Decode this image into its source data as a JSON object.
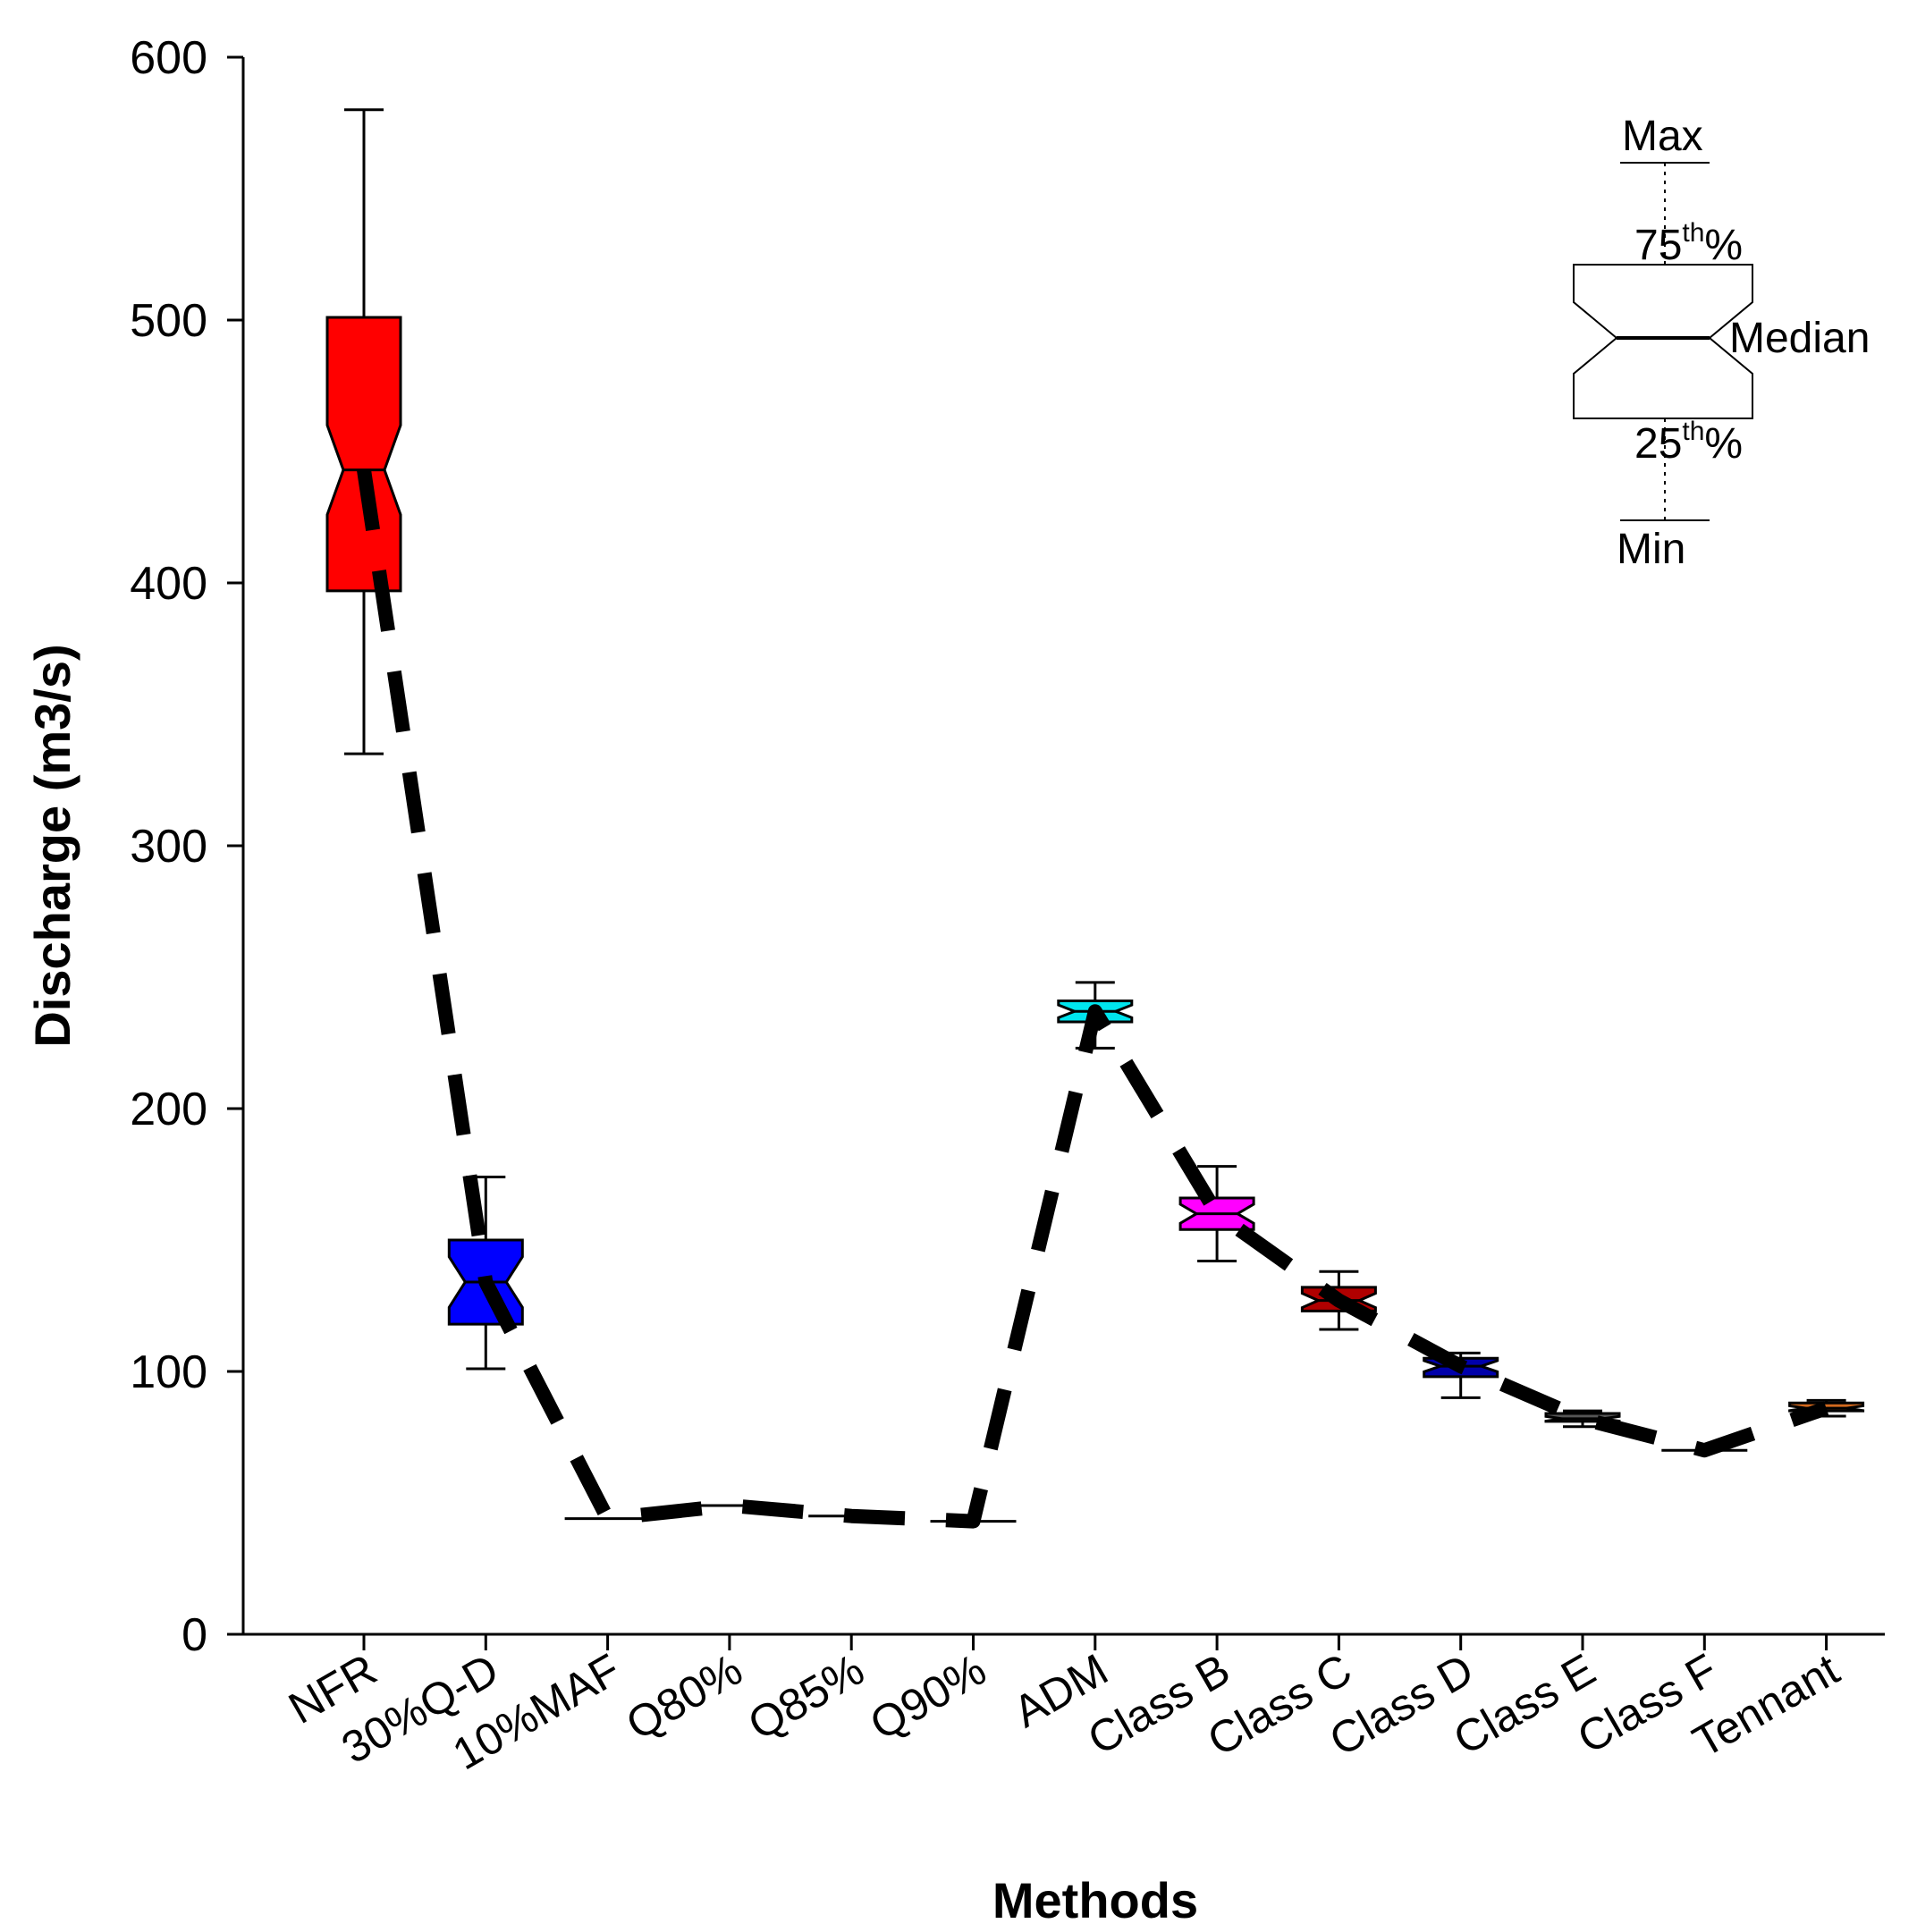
{
  "chart_data": {
    "type": "box",
    "xlabel": "Methods",
    "ylabel": "Discharge (m3/s)",
    "ylim": [
      0,
      600
    ],
    "yticks": [
      0,
      100,
      200,
      300,
      400,
      500,
      600
    ],
    "categories": [
      "NFR",
      "30%Q-D",
      "10%MAF",
      "Q80%",
      "Q85%",
      "Q90%",
      "ADM",
      "Class B",
      "Class C",
      "Class D",
      "Class E",
      "Class F",
      "Tennant"
    ],
    "boxes": [
      {
        "category": "NFR",
        "min": 335,
        "q1": 397,
        "median": 443,
        "q3": 501,
        "max": 580,
        "color": "#ff0000"
      },
      {
        "category": "30%Q-D",
        "min": 101,
        "q1": 118,
        "median": 134,
        "q3": 150,
        "max": 174,
        "color": "#0000ff"
      },
      {
        "category": "10%MAF",
        "min": 44,
        "q1": 44,
        "median": 44,
        "q3": 44,
        "max": 44,
        "color": "#000000"
      },
      {
        "category": "Q80%",
        "min": 49,
        "q1": 49,
        "median": 49,
        "q3": 49,
        "max": 49,
        "color": "#000000"
      },
      {
        "category": "Q85%",
        "min": 45,
        "q1": 45,
        "median": 45,
        "q3": 45,
        "max": 45,
        "color": "#000000"
      },
      {
        "category": "Q90%",
        "min": 43,
        "q1": 43,
        "median": 43,
        "q3": 43,
        "max": 43,
        "color": "#000000"
      },
      {
        "category": "ADM",
        "min": 223,
        "q1": 233,
        "median": 237,
        "q3": 241,
        "max": 248,
        "color": "#00e5ee"
      },
      {
        "category": "Class B",
        "min": 142,
        "q1": 154,
        "median": 160,
        "q3": 166,
        "max": 178,
        "color": "#ff00ff"
      },
      {
        "category": "Class C",
        "min": 116,
        "q1": 123,
        "median": 127,
        "q3": 132,
        "max": 138,
        "color": "#b00000"
      },
      {
        "category": "Class D",
        "min": 90,
        "q1": 98,
        "median": 102,
        "q3": 105,
        "max": 107,
        "color": "#0000aa"
      },
      {
        "category": "Class E",
        "min": 79,
        "q1": 81,
        "median": 82,
        "q3": 84,
        "max": 85,
        "color": "#555555"
      },
      {
        "category": "Class F",
        "min": 70,
        "q1": 70,
        "median": 70,
        "q3": 70,
        "max": 70,
        "color": "#000000"
      },
      {
        "category": "Tennant",
        "min": 83,
        "q1": 85,
        "median": 86,
        "q3": 88,
        "max": 89,
        "color": "#d2691e"
      }
    ],
    "trend_line": {
      "style": "dashed",
      "values": [
        443,
        134,
        44,
        49,
        45,
        43,
        237,
        160,
        127,
        102,
        82,
        70,
        86
      ]
    },
    "legend": {
      "placement": "top-right",
      "labels": {
        "max": "Max",
        "q3_num": "75",
        "q3_sup": "th",
        "q3_pct": "%",
        "median": "Median",
        "q1_num": "25",
        "q1_sup": "th",
        "q1_pct": "%",
        "min": "Min"
      }
    }
  }
}
